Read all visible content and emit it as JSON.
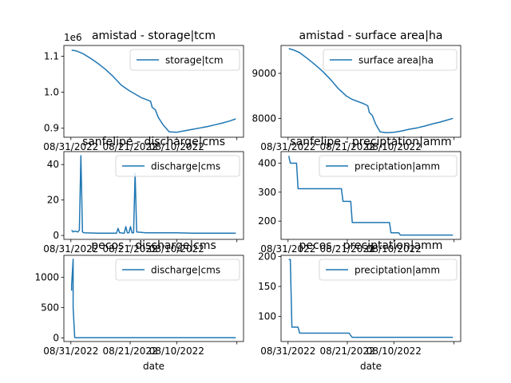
{
  "chart_data": [
    {
      "type": "line",
      "title": "amistad - storage|tcm",
      "series": [
        {
          "name": "storage|tcm",
          "color": "#1f77b4",
          "x": [
            "2022-08-03",
            "2022-08-06",
            "2022-08-10",
            "2022-08-15",
            "2022-08-20",
            "2022-08-25",
            "2022-08-30",
            "2022-09-04",
            "2022-09-09",
            "2022-09-13",
            "2022-09-17",
            "2022-09-20",
            "2022-09-23",
            "2022-09-24",
            "2022-09-26",
            "2022-09-28",
            "2022-10-01",
            "2022-10-05",
            "2022-10-10",
            "2022-10-15",
            "2022-10-20",
            "2022-10-25",
            "2022-10-30",
            "2022-11-04",
            "2022-11-08",
            "2022-11-13",
            "2022-11-17"
          ],
          "y": [
            1117000.0,
            1115000.0,
            1108000.0,
            1095000.0,
            1080000.0,
            1063000.0,
            1043000.0,
            1020000.0,
            1005000.0,
            995000.0,
            985000.0,
            980000.0,
            975000.0,
            958000.0,
            952000.0,
            930000.0,
            910000.0,
            890000.0,
            889000.0,
            893000.0,
            897000.0,
            901000.0,
            905000.0,
            910000.0,
            914000.0,
            920000.0,
            926000.0
          ]
        }
      ],
      "xticks": [
        "08/31/2022",
        "08/21/2022",
        "08/10/2022"
      ],
      "yticks": [
        "0.9",
        "1.0",
        "1.1"
      ],
      "ytick_values": [
        900000.0,
        1000000.0,
        1100000.0
      ],
      "offset_label": "1e6",
      "xlim": [
        "2022-07-29",
        "2022-11-22"
      ],
      "ylim": [
        875000.0,
        1130000.0
      ],
      "legend": "upper right"
    },
    {
      "type": "line",
      "title": "amistad - surface area|ha",
      "series": [
        {
          "name": "surface area|ha",
          "color": "#1f77b4",
          "x": [
            "2022-08-03",
            "2022-08-06",
            "2022-08-10",
            "2022-08-15",
            "2022-08-20",
            "2022-08-25",
            "2022-08-30",
            "2022-09-04",
            "2022-09-09",
            "2022-09-13",
            "2022-09-17",
            "2022-09-20",
            "2022-09-23",
            "2022-09-24",
            "2022-09-26",
            "2022-09-28",
            "2022-10-01",
            "2022-10-05",
            "2022-10-10",
            "2022-10-15",
            "2022-10-20",
            "2022-10-25",
            "2022-10-30",
            "2022-11-04",
            "2022-11-08",
            "2022-11-13",
            "2022-11-17"
          ],
          "y": [
            9550,
            9520,
            9460,
            9330,
            9190,
            9040,
            8860,
            8660,
            8500,
            8420,
            8370,
            8330,
            8280,
            8130,
            8060,
            7880,
            7700,
            7680,
            7690,
            7720,
            7760,
            7790,
            7830,
            7880,
            7910,
            7960,
            8000
          ]
        }
      ],
      "xticks": [
        "08/31/2022",
        "08/21/2022",
        "08/10/2022"
      ],
      "yticks": [
        "8000",
        "9000"
      ],
      "ytick_values": [
        8000,
        9000
      ],
      "xlim": [
        "2022-07-29",
        "2022-11-22"
      ],
      "ylim": [
        7580,
        9620
      ],
      "legend": "upper right"
    },
    {
      "type": "line",
      "title": "sanfelipe - discharge|cms",
      "series": [
        {
          "name": "discharge|cms",
          "color": "#1f77b4",
          "x": [
            "2022-08-03",
            "2022-08-04",
            "2022-08-05",
            "2022-08-07",
            "2022-08-08",
            "2022-08-09",
            "2022-08-10",
            "2022-08-11",
            "2022-08-20",
            "2022-08-25",
            "2022-09-01",
            "2022-09-02",
            "2022-09-03",
            "2022-09-04",
            "2022-09-05",
            "2022-09-06",
            "2022-09-07",
            "2022-09-08",
            "2022-09-09",
            "2022-09-10",
            "2022-09-11",
            "2022-09-12",
            "2022-09-13",
            "2022-09-14",
            "2022-09-20",
            "2022-10-01",
            "2022-10-10",
            "2022-10-20",
            "2022-11-01",
            "2022-11-17"
          ],
          "y": [
            3,
            2,
            2.5,
            2,
            3,
            45,
            2,
            1.5,
            1.3,
            1.3,
            1.3,
            4,
            1.5,
            1.5,
            1.3,
            1.3,
            5,
            1.5,
            1.5,
            5,
            1.5,
            1.5,
            35,
            2,
            1.5,
            1.5,
            1.5,
            1.3,
            1.3,
            1.3
          ]
        }
      ],
      "xticks": [
        "08/31/2022",
        "08/21/2022",
        "08/10/2022"
      ],
      "yticks": [
        "0",
        "20",
        "40"
      ],
      "ytick_values": [
        0,
        20,
        40
      ],
      "xlim": [
        "2022-07-29",
        "2022-11-22"
      ],
      "ylim": [
        -2.2,
        47.3
      ],
      "legend": "upper right"
    },
    {
      "type": "line",
      "title": "sanfelipe - preciptation|amm",
      "series": [
        {
          "name": "preciptation|amm",
          "color": "#1f77b4",
          "x": [
            "2022-08-03",
            "2022-08-04",
            "2022-08-05",
            "2022-08-08",
            "2022-08-09",
            "2022-08-10",
            "2022-09-06",
            "2022-09-07",
            "2022-09-11",
            "2022-09-12",
            "2022-09-13",
            "2022-10-07",
            "2022-10-08",
            "2022-10-13",
            "2022-10-14",
            "2022-11-17"
          ],
          "y": [
            425,
            400,
            400,
            400,
            312,
            312,
            312,
            268,
            268,
            268,
            195,
            195,
            160,
            160,
            152,
            152
          ]
        }
      ],
      "xticks": [
        "08/31/2022",
        "08/21/2022",
        "08/10/2022"
      ],
      "yticks": [
        "200",
        "300",
        "400"
      ],
      "ytick_values": [
        200,
        300,
        400
      ],
      "xlim": [
        "2022-07-29",
        "2022-11-22"
      ],
      "ylim": [
        137,
        440
      ],
      "legend": "upper right"
    },
    {
      "type": "line",
      "title": "pecos - discharge|cms",
      "xlabel": "date",
      "series": [
        {
          "name": "discharge|cms",
          "color": "#1f77b4",
          "x": [
            "2022-08-03",
            "2022-08-03",
            "2022-08-04",
            "2022-08-04",
            "2022-08-05",
            "2022-08-06",
            "2022-08-30",
            "2022-09-20",
            "2022-10-20",
            "2022-11-17"
          ],
          "y": [
            780,
            870,
            1300,
            500,
            5,
            3,
            3,
            3,
            3,
            3
          ]
        }
      ],
      "xticks": [
        "08/31/2022",
        "08/21/2022",
        "08/10/2022"
      ],
      "yticks": [
        "0",
        "500",
        "1000"
      ],
      "ytick_values": [
        0,
        500,
        1000
      ],
      "xlim": [
        "2022-07-29",
        "2022-11-22"
      ],
      "ylim": [
        -60,
        1365
      ],
      "legend": "upper right"
    },
    {
      "type": "line",
      "title": "pecos - preciptation|amm",
      "xlabel": "date",
      "series": [
        {
          "name": "preciptation|amm",
          "color": "#1f77b4",
          "x": [
            "2022-08-03",
            "2022-08-04",
            "2022-08-05",
            "2022-08-06",
            "2022-08-09",
            "2022-08-10",
            "2022-09-10",
            "2022-09-11",
            "2022-09-12",
            "2022-09-13",
            "2022-09-14",
            "2022-11-17"
          ],
          "y": [
            195,
            195,
            82,
            82,
            82,
            72,
            72,
            72,
            68,
            65,
            65,
            65
          ]
        }
      ],
      "xticks": [
        "08/31/2022",
        "08/21/2022",
        "08/10/2022"
      ],
      "yticks": [
        "100",
        "150",
        "200"
      ],
      "ytick_values": [
        100,
        150,
        200
      ],
      "xlim": [
        "2022-07-29",
        "2022-11-22"
      ],
      "ylim": [
        58,
        202
      ],
      "legend": "upper right"
    }
  ]
}
